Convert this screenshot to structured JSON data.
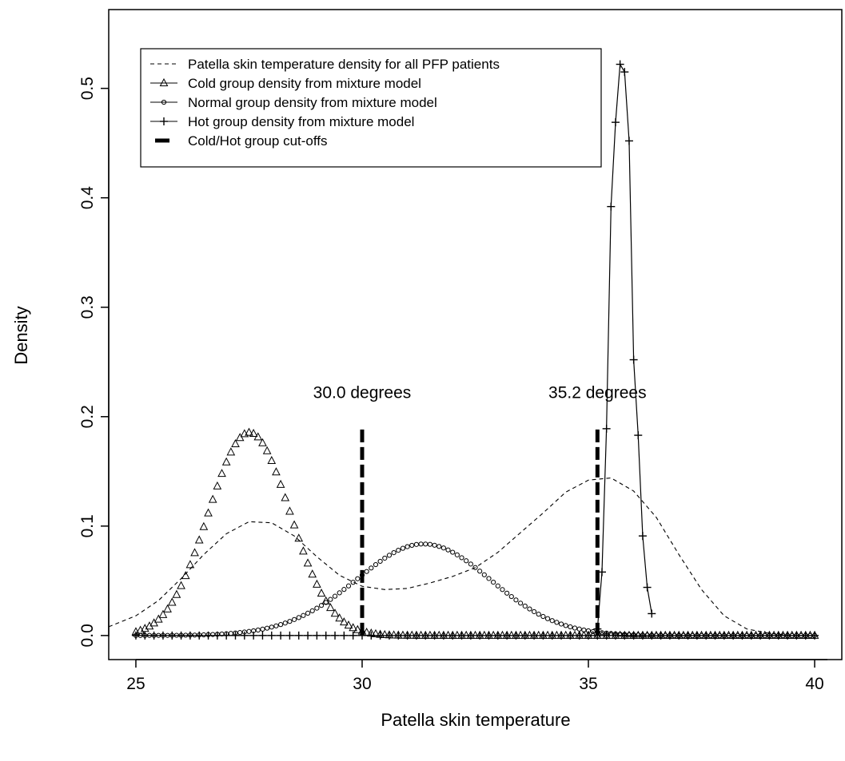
{
  "chart_data": {
    "type": "line",
    "title": "",
    "xlabel": "Patella skin temperature",
    "ylabel": "Density",
    "xlim": [
      24.4,
      40.6
    ],
    "ylim": [
      -0.022,
      0.572
    ],
    "xticks": [
      25,
      30,
      35,
      40
    ],
    "yticks": [
      0.0,
      0.1,
      0.2,
      0.3,
      0.4,
      0.5
    ],
    "xtick_labels": [
      "25",
      "30",
      "35",
      "40"
    ],
    "ytick_labels": [
      "0.0",
      "0.1",
      "0.2",
      "0.3",
      "0.4",
      "0.5"
    ],
    "grid": false,
    "legend_position": "top-left",
    "legend": [
      {
        "label": "Patella skin temperature density for all PFP patients",
        "style": "dashed"
      },
      {
        "label": "Cold group density from mixture model",
        "style": "line-triangle"
      },
      {
        "label": "Normal group density from mixture model",
        "style": "line-circle"
      },
      {
        "label": "Hot group density from mixture model",
        "style": "line-plus"
      },
      {
        "label": "Cold/Hot group cut-offs",
        "style": "thick-dashed"
      }
    ],
    "series": [
      {
        "name": "Patella skin temperature density for all PFP patients",
        "style": "dashed",
        "x": [
          24.4,
          25,
          25.5,
          26,
          26.5,
          27,
          27.5,
          28,
          28.5,
          29,
          29.5,
          30,
          30.5,
          31,
          31.5,
          32,
          32.5,
          33,
          33.5,
          34,
          34.5,
          35,
          35.5,
          36,
          36.5,
          37,
          37.5,
          38,
          38.5,
          39,
          39.5,
          40
        ],
        "y": [
          0.008,
          0.018,
          0.032,
          0.052,
          0.074,
          0.093,
          0.104,
          0.103,
          0.091,
          0.072,
          0.055,
          0.045,
          0.042,
          0.043,
          0.048,
          0.054,
          0.062,
          0.076,
          0.094,
          0.112,
          0.131,
          0.142,
          0.144,
          0.132,
          0.108,
          0.074,
          0.042,
          0.018,
          0.006,
          0.002,
          0.0,
          0.0
        ]
      },
      {
        "name": "Cold group density from mixture model",
        "style": "line-triangle",
        "x": [
          25.0,
          25.1,
          25.2,
          25.3,
          25.4,
          25.5,
          25.6,
          25.7,
          25.8,
          25.9,
          26.0,
          26.1,
          26.2,
          26.3,
          26.4,
          26.5,
          26.6,
          26.7,
          26.8,
          26.9,
          27.0,
          27.1,
          27.2,
          27.3,
          27.4,
          27.5,
          27.6,
          27.7,
          27.8,
          27.9,
          28.0,
          28.1,
          28.2,
          28.3,
          28.4,
          28.5,
          28.6,
          28.7,
          28.8,
          28.9,
          29.0,
          29.1,
          29.2,
          29.3,
          29.4,
          29.5,
          29.6,
          29.7,
          29.8,
          29.9,
          30.0,
          30.1,
          30.2,
          30.3,
          30.4,
          30.5,
          30.6,
          30.7,
          30.8,
          30.9,
          31.0,
          31.1,
          31.2,
          31.3,
          31.4,
          31.5,
          31.6,
          31.7,
          31.8,
          31.9,
          32.0,
          32.1,
          32.2,
          32.3,
          32.4,
          32.5,
          32.6,
          32.7,
          32.8,
          32.9,
          33.0,
          33.1,
          33.2,
          33.3,
          33.4,
          33.5,
          33.6,
          33.7,
          33.8,
          33.9,
          34.0,
          34.1,
          34.2,
          34.3,
          34.4,
          34.5,
          34.6,
          34.7,
          34.8,
          34.9,
          35.0,
          35.1,
          35.2,
          35.3,
          35.4,
          35.5,
          35.6,
          35.7,
          35.8,
          35.9,
          36.0,
          36.1,
          36.2,
          36.3,
          36.4,
          36.5,
          36.6,
          36.7,
          36.8,
          36.9,
          37.0,
          37.1,
          37.2,
          37.3,
          37.4,
          37.5,
          37.6,
          37.7,
          37.8,
          37.9,
          38.0,
          38.1,
          38.2,
          38.3,
          38.4,
          38.5,
          38.6,
          38.7,
          38.8,
          38.9,
          39.0,
          39.1,
          39.2,
          39.3,
          39.4,
          39.5,
          39.6,
          39.7,
          39.8,
          39.9,
          40.0
        ],
        "y": [
          0.0033,
          0.0046,
          0.0063,
          0.0085,
          0.0113,
          0.0148,
          0.019,
          0.0241,
          0.0302,
          0.0373,
          0.0454,
          0.0545,
          0.0646,
          0.0755,
          0.0871,
          0.0993,
          0.1118,
          0.1242,
          0.1364,
          0.1479,
          0.1584,
          0.1675,
          0.175,
          0.1807,
          0.1842,
          0.1855,
          0.1845,
          0.1813,
          0.1759,
          0.1686,
          0.1597,
          0.1493,
          0.1379,
          0.1258,
          0.1134,
          0.1009,
          0.0887,
          0.077,
          0.066,
          0.0559,
          0.0467,
          0.0385,
          0.0314,
          0.0253,
          0.0201,
          0.0158,
          0.0122,
          0.0093,
          0.007,
          0.0052,
          0.0038,
          0.0028,
          0.002,
          0.0014,
          0.0009,
          0.0006,
          0.0004,
          0.0003,
          0.0002,
          0.0001,
          0.0001,
          0.0001,
          0.0,
          0.0,
          0.0,
          0.0,
          0.0,
          0.0,
          0.0,
          0.0,
          0.0,
          0.0,
          0.0,
          0.0,
          0.0,
          0.0,
          0.0,
          0.0,
          0.0,
          0.0,
          0.0,
          0.0,
          0.0,
          0.0,
          0.0,
          0.0,
          0.0,
          0.0,
          0.0,
          0.0,
          0.0,
          0.0,
          0.0,
          0.0,
          0.0,
          0.0,
          0.0,
          0.0,
          0.0,
          0.0,
          0.0,
          0.0,
          0.0,
          0.0,
          0.0,
          0.0,
          0.0,
          0.0,
          0.0,
          0.0,
          0.0,
          0.0,
          0.0,
          0.0,
          0.0,
          0.0,
          0.0,
          0.0,
          0.0,
          0.0,
          0.0,
          0.0,
          0.0,
          0.0,
          0.0,
          0.0,
          0.0,
          0.0,
          0.0,
          0.0,
          0.0,
          0.0,
          0.0,
          0.0,
          0.0,
          0.0,
          0.0,
          0.0,
          0.0,
          0.0,
          0.0,
          0.0,
          0.0,
          0.0,
          0.0,
          0.0,
          0.0,
          0.0,
          0.0,
          0.0,
          0.0
        ]
      },
      {
        "name": "Normal group density from mixture model",
        "style": "line-circle",
        "x": [
          25.0,
          25.1,
          25.2,
          25.3,
          25.4,
          25.5,
          25.6,
          25.7,
          25.8,
          25.9,
          26.0,
          26.1,
          26.2,
          26.3,
          26.4,
          26.5,
          26.6,
          26.7,
          26.8,
          26.9,
          27.0,
          27.1,
          27.2,
          27.3,
          27.4,
          27.5,
          27.6,
          27.7,
          27.8,
          27.9,
          28.0,
          28.1,
          28.2,
          28.3,
          28.4,
          28.5,
          28.6,
          28.7,
          28.8,
          28.9,
          29.0,
          29.1,
          29.2,
          29.3,
          29.4,
          29.5,
          29.6,
          29.7,
          29.8,
          29.9,
          30.0,
          30.1,
          30.2,
          30.3,
          30.4,
          30.5,
          30.6,
          30.7,
          30.8,
          30.9,
          31.0,
          31.1,
          31.2,
          31.3,
          31.4,
          31.5,
          31.6,
          31.7,
          31.8,
          31.9,
          32.0,
          32.1,
          32.2,
          32.3,
          32.4,
          32.5,
          32.6,
          32.7,
          32.8,
          32.9,
          33.0,
          33.1,
          33.2,
          33.3,
          33.4,
          33.5,
          33.6,
          33.7,
          33.8,
          33.9,
          34.0,
          34.1,
          34.2,
          34.3,
          34.4,
          34.5,
          34.6,
          34.7,
          34.8,
          34.9,
          35.0,
          35.1,
          35.2,
          35.3,
          35.4,
          35.5,
          35.6,
          35.7,
          35.8,
          35.9,
          36.0,
          36.1,
          36.2,
          36.3,
          36.4,
          36.5,
          36.6,
          36.7,
          36.8,
          36.9,
          37.0,
          37.1,
          37.2,
          37.3,
          37.4,
          37.5,
          37.6,
          37.7,
          37.8,
          37.9,
          38.0,
          38.1,
          38.2,
          38.3,
          38.4,
          38.5,
          38.6,
          38.7,
          38.8,
          38.9,
          39.0,
          39.1,
          39.2,
          39.3,
          39.4,
          39.5,
          39.6,
          39.7,
          39.8,
          39.9,
          40.0
        ],
        "y": [
          0.0,
          0.0,
          0.0,
          0.0001,
          0.0001,
          0.0001,
          0.0001,
          0.0001,
          0.0002,
          0.0002,
          0.0002,
          0.0003,
          0.0004,
          0.0004,
          0.0005,
          0.0006,
          0.0008,
          0.0009,
          0.0011,
          0.0014,
          0.0016,
          0.0019,
          0.0023,
          0.0027,
          0.0032,
          0.0037,
          0.0043,
          0.005,
          0.0058,
          0.0067,
          0.0077,
          0.0088,
          0.01,
          0.0114,
          0.0129,
          0.0146,
          0.0164,
          0.0183,
          0.0204,
          0.0226,
          0.025,
          0.0275,
          0.0302,
          0.033,
          0.0359,
          0.039,
          0.0421,
          0.0453,
          0.0486,
          0.0519,
          0.0552,
          0.0585,
          0.0617,
          0.0648,
          0.0678,
          0.0707,
          0.0733,
          0.0757,
          0.0779,
          0.0797,
          0.0812,
          0.0824,
          0.0832,
          0.0836,
          0.0836,
          0.0833,
          0.0825,
          0.0814,
          0.08,
          0.0782,
          0.0761,
          0.0737,
          0.0711,
          0.0683,
          0.0653,
          0.0621,
          0.0588,
          0.0555,
          0.0521,
          0.0487,
          0.0453,
          0.042,
          0.0387,
          0.0356,
          0.0325,
          0.0296,
          0.0269,
          0.0243,
          0.0218,
          0.0195,
          0.0174,
          0.0154,
          0.0136,
          0.012,
          0.0105,
          0.0091,
          0.0079,
          0.0068,
          0.0059,
          0.005,
          0.0043,
          0.0036,
          0.0031,
          0.0026,
          0.0022,
          0.0018,
          0.0015,
          0.0012,
          0.001,
          0.0008,
          0.0007,
          0.0005,
          0.0004,
          0.0004,
          0.0003,
          0.0002,
          0.0002,
          0.0001,
          0.0001,
          0.0001,
          0.0001,
          0.0001,
          0.0,
          0.0,
          0.0,
          0.0,
          0.0,
          0.0,
          0.0,
          0.0,
          0.0,
          0.0,
          0.0,
          0.0,
          0.0,
          0.0,
          0.0,
          0.0,
          0.0,
          0.0,
          0.0,
          0.0,
          0.0,
          0.0,
          0.0,
          0.0,
          0.0,
          0.0,
          0.0,
          0.0,
          0.0
        ]
      },
      {
        "name": "Hot group density from mixture model",
        "style": "line-plus",
        "x": [
          25.0,
          25.2,
          25.4,
          25.6,
          25.8,
          26.0,
          26.2,
          26.4,
          26.6,
          26.8,
          27.0,
          27.2,
          27.4,
          27.6,
          27.8,
          28.0,
          28.2,
          28.4,
          28.6,
          28.8,
          29.0,
          29.2,
          29.4,
          29.6,
          29.8,
          30.0,
          30.2,
          30.4,
          30.6,
          30.8,
          31.0,
          31.2,
          31.4,
          31.6,
          31.8,
          32.0,
          32.2,
          32.4,
          32.6,
          32.8,
          33.0,
          33.2,
          33.4,
          33.6,
          33.8,
          34.0,
          34.2,
          34.4,
          34.6,
          34.8,
          35.0,
          35.2,
          35.4,
          35.6,
          35.8,
          36.0,
          36.2,
          36.4,
          36.6,
          36.8,
          37.0,
          37.2,
          37.4,
          37.6,
          37.8,
          38.0,
          38.2,
          38.4,
          38.6,
          38.8,
          39.0,
          39.2,
          39.4,
          39.6,
          39.8,
          40.0
        ],
        "y": [
          0.0,
          0.0,
          0.0,
          0.0,
          0.0,
          0.0,
          0.0,
          0.0,
          0.0,
          0.0,
          0.0,
          0.0,
          0.0,
          0.0,
          0.0,
          0.0,
          0.0,
          0.0,
          0.0,
          0.0,
          0.0,
          0.0,
          0.0,
          0.0,
          0.0,
          0.0,
          0.0,
          0.0,
          0.0,
          0.0,
          0.0,
          0.0,
          0.0,
          0.0,
          0.0,
          0.0,
          0.0,
          0.0,
          0.0,
          0.0,
          0.0,
          0.0,
          0.0,
          0.0,
          0.0,
          0.0,
          0.0,
          0.0,
          0.0,
          0.0,
          0.0,
          0.0,
          0.0,
          0.0,
          0.0,
          0.0,
          0.0,
          0.0,
          0.0,
          0.0,
          0.0,
          0.0,
          0.0,
          0.0,
          0.0,
          0.0,
          0.0,
          0.0,
          0.0,
          0.0,
          0.0,
          0.0,
          0.0,
          0.0,
          0.0,
          0.0
        ]
      },
      {
        "name": "Hot group density from mixture model",
        "style": "line-plus-peak",
        "x": [
          35.2,
          35.3,
          35.4,
          35.5,
          35.6,
          35.7,
          35.8,
          35.9,
          36.0,
          36.1,
          36.2,
          36.3,
          36.4
        ],
        "y": [
          0.006,
          0.058,
          0.189,
          0.392,
          0.469,
          0.522,
          0.515,
          0.452,
          0.252,
          0.183,
          0.091,
          0.044,
          0.02
        ]
      }
    ],
    "cutoffs": [
      {
        "x": 30.0,
        "y_top": 0.19,
        "label": "30.0 degrees"
      },
      {
        "x": 35.2,
        "y_top": 0.19,
        "label": "35.2 degrees"
      }
    ]
  }
}
